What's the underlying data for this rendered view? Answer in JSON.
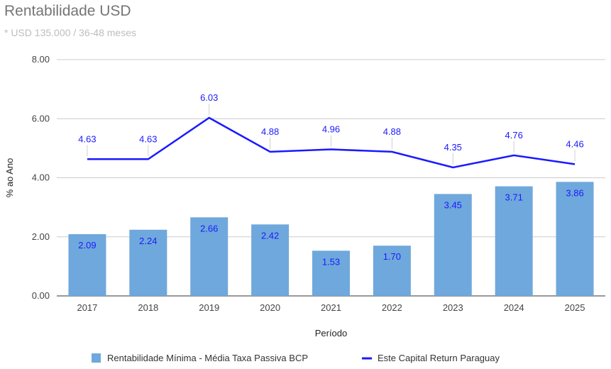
{
  "title": "Rentabilidade USD",
  "subtitle": "* USD 135.000 / 36-48 meses",
  "chart_data": {
    "type": "bar",
    "categories": [
      "2017",
      "2018",
      "2019",
      "2020",
      "2021",
      "2022",
      "2023",
      "2024",
      "2025"
    ],
    "series": [
      {
        "name": "Rentabilidade Mínima - Média Taxa Passiva BCP",
        "kind": "bar",
        "color": "#6fa8dc",
        "values": [
          2.09,
          2.24,
          2.66,
          2.42,
          1.53,
          1.7,
          3.45,
          3.71,
          3.86
        ],
        "labels": [
          "2.09",
          "2.24",
          "2.66",
          "2.42",
          "1.53",
          "1.70",
          "3.45",
          "3.71",
          "3.86"
        ]
      },
      {
        "name": "Este Capital Return Paraguay",
        "kind": "line",
        "color": "#1a1aff",
        "values": [
          4.63,
          4.63,
          6.03,
          4.88,
          4.96,
          4.88,
          4.35,
          4.76,
          4.46
        ],
        "labels": [
          "4.63",
          "4.63",
          "6.03",
          "4.88",
          "4.96",
          "4.88",
          "4.35",
          "4.76",
          "4.46"
        ]
      }
    ],
    "xlabel": "Período",
    "ylabel": "% ao Ano",
    "ylim": [
      0,
      8
    ],
    "yticks": [
      "0.00",
      "2.00",
      "4.00",
      "6.00",
      "8.00"
    ],
    "grid": true,
    "legend": "bottom"
  }
}
